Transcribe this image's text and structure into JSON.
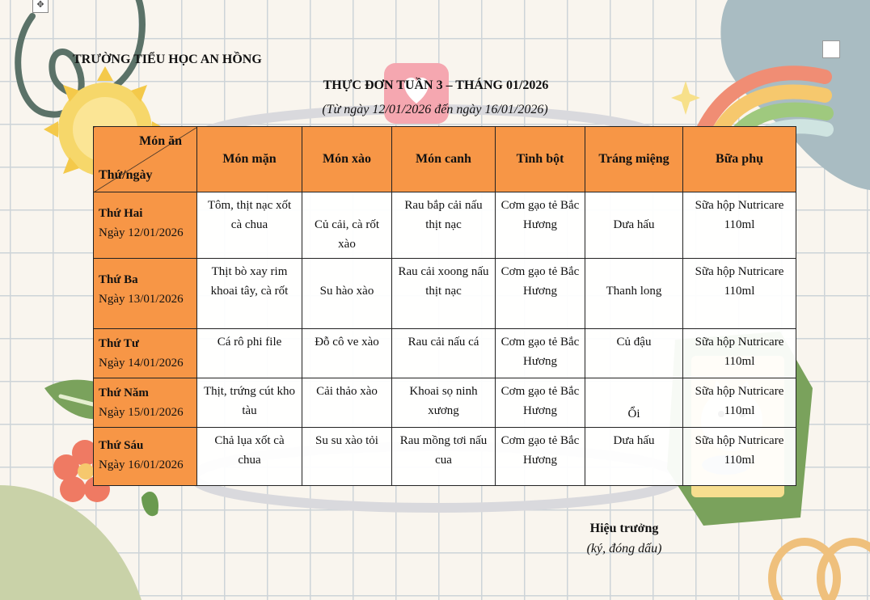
{
  "school": "TRƯỜNG TIỂU HỌC AN HỒNG",
  "title": "THỰC ĐƠN TUẦN 3 – THÁNG 01/2026",
  "subtitle": "(Từ ngày 12/01/2026 đến ngày 16/01/2026)",
  "table": {
    "corner_top": "Món ăn",
    "corner_bottom": "Thứ/ngày",
    "columns": [
      "Món mặn",
      "Món xào",
      "Món canh",
      "Tinh bột",
      "Tráng miệng",
      "Bữa phụ"
    ],
    "rows": [
      {
        "day": "Thứ Hai",
        "date": "Ngày 12/01/2026",
        "cells": [
          "Tôm, thịt nạc xốt cà chua",
          "Củ cải, cà rốt xào",
          "Rau bắp cải nấu thịt nạc",
          "Cơm gạo tẻ Bắc Hương",
          "Dưa hấu",
          "Sữa hộp Nutricare 110ml"
        ]
      },
      {
        "day": "Thứ Ba",
        "date": "Ngày 13/01/2026",
        "cells": [
          "Thịt bò xay rim khoai tây, cà rốt",
          "Su hào xào",
          "Rau cải xoong nấu thịt nạc",
          "Cơm gạo tẻ Bắc Hương",
          "Thanh long",
          "Sữa hộp Nutricare 110ml"
        ]
      },
      {
        "day": "Thứ Tư",
        "date": "Ngày 14/01/2026",
        "cells": [
          "Cá rô phi file",
          "Đỗ cô ve xào",
          "Rau cải nấu cá",
          "Cơm gạo tẻ Bắc Hương",
          "Củ đậu",
          "Sữa hộp Nutricare 110ml"
        ]
      },
      {
        "day": "Thứ Năm",
        "date": "Ngày 15/01/2026",
        "cells": [
          "Thịt, trứng cút kho tàu",
          "Cải thảo xào",
          "Khoai sọ ninh xương",
          "Cơm gạo tẻ Bắc Hương",
          "Ổi",
          "Sữa hộp Nutricare 110ml"
        ]
      },
      {
        "day": "Thứ Sáu",
        "date": "Ngày 16/01/2026",
        "cells": [
          "Chả lụa xốt cà chua",
          "Su su xào tỏi",
          "Rau mồng tơi nấu cua",
          "Cơm gạo tẻ Bắc Hương",
          "Dưa hấu",
          "Sữa hộp Nutricare 110ml"
        ]
      }
    ]
  },
  "signature": {
    "title": "Hiệu trưởng",
    "note": "(ký, đóng dấu)"
  },
  "colors": {
    "header_orange": "#f79646",
    "background": "#f9f5ee",
    "grid_line": "#cdd4d8"
  },
  "icons": [
    "move-handle-icon",
    "sun-icon",
    "heart-icon",
    "rainbow-icon",
    "sparkle-icon",
    "cat-stamp-icon",
    "flower-icon",
    "leaf-icon"
  ]
}
